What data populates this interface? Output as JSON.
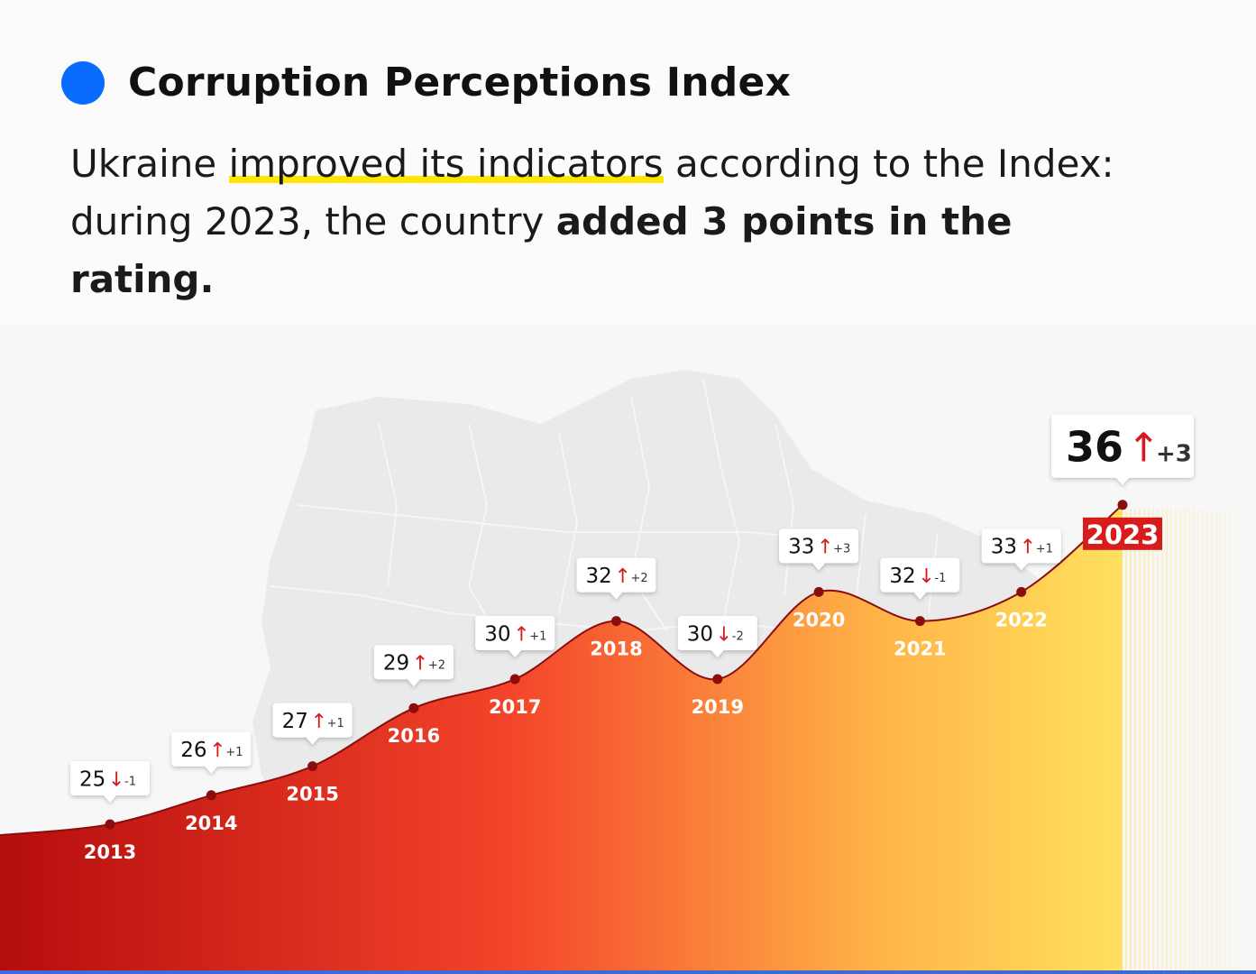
{
  "header": {
    "title": "Corruption Perceptions Index",
    "subtitle_part1": "Ukraine ",
    "subtitle_highlight": "improved its indicators",
    "subtitle_part2": " according to the Index: during 2023, the country ",
    "subtitle_bold": "added 3 points in the rating.",
    "accent_color": "#0a6cff",
    "highlight_color": "#ffe600"
  },
  "chart_data": {
    "type": "area",
    "categories": [
      "2013",
      "2014",
      "2015",
      "2016",
      "2017",
      "2018",
      "2019",
      "2020",
      "2021",
      "2022",
      "2023"
    ],
    "values": [
      25,
      26,
      27,
      29,
      30,
      32,
      30,
      33,
      32,
      33,
      36
    ],
    "changes": [
      "-1",
      "+1",
      "+1",
      "+2",
      "+1",
      "+2",
      "-2",
      "+3",
      "-1",
      "+1",
      "+3"
    ],
    "directions": [
      "down",
      "up",
      "up",
      "up",
      "up",
      "up",
      "down",
      "up",
      "down",
      "up",
      "up"
    ],
    "highlight_year": "2023",
    "fill_gradient": [
      "#b50d0d",
      "#f4432a",
      "#ffb347",
      "#ffe15e"
    ],
    "arrow_color": "#d71920",
    "title": "",
    "xlabel": "",
    "ylabel": ""
  }
}
